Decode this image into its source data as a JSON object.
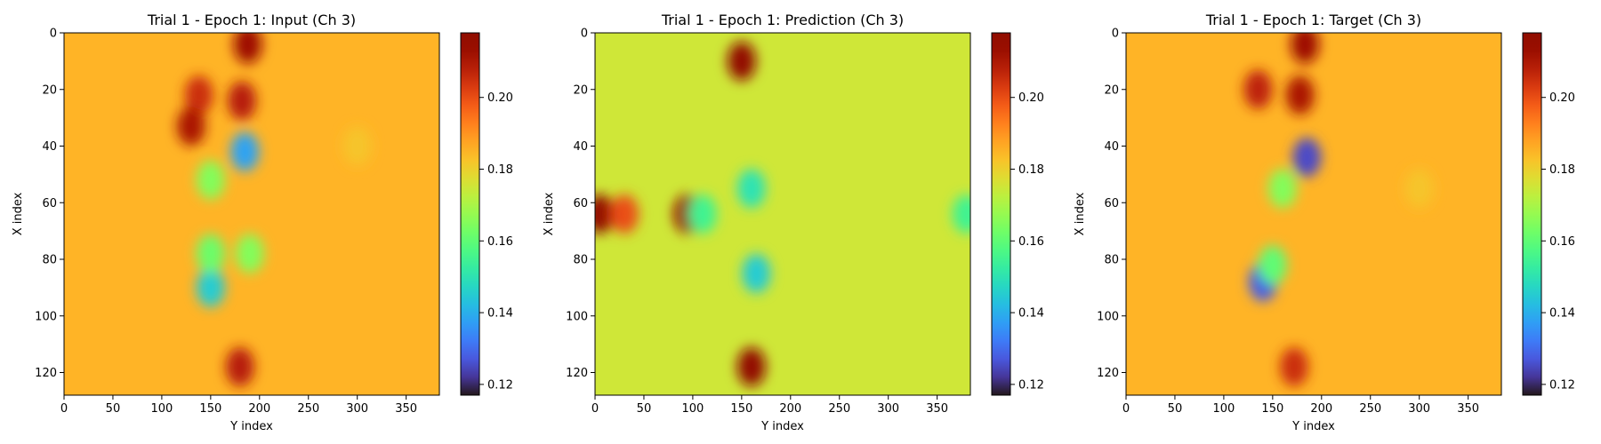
{
  "chart_data": [
    {
      "type": "heatmap",
      "title": "Trial 1 - Epoch 1: Input (Ch 3)",
      "xlabel": "Y index",
      "ylabel": "X index",
      "xlim": [
        0,
        384
      ],
      "ylim": [
        128,
        0
      ],
      "xticks": [
        "0",
        "50",
        "100",
        "150",
        "200",
        "250",
        "300",
        "350"
      ],
      "yticks": [
        "0",
        "20",
        "40",
        "60",
        "80",
        "100",
        "120"
      ],
      "colorbar": {
        "vmin": 0.117,
        "vmax": 0.218,
        "ticks": [
          "0.12",
          "0.14",
          "0.16",
          "0.18",
          "0.20"
        ],
        "colormap": "turbo"
      },
      "background_value": 0.185,
      "features": [
        {
          "x": 188,
          "y": 4,
          "value": 0.212
        },
        {
          "x": 138,
          "y": 22,
          "value": 0.205
        },
        {
          "x": 130,
          "y": 33,
          "value": 0.21
        },
        {
          "x": 182,
          "y": 24,
          "value": 0.208
        },
        {
          "x": 185,
          "y": 42,
          "value": 0.138
        },
        {
          "x": 150,
          "y": 52,
          "value": 0.165
        },
        {
          "x": 150,
          "y": 90,
          "value": 0.145
        },
        {
          "x": 150,
          "y": 78,
          "value": 0.162
        },
        {
          "x": 190,
          "y": 78,
          "value": 0.165
        },
        {
          "x": 180,
          "y": 118,
          "value": 0.208
        },
        {
          "x": 300,
          "y": 40,
          "value": 0.182
        }
      ]
    },
    {
      "type": "heatmap",
      "title": "Trial 1 - Epoch 1: Prediction (Ch 3)",
      "xlabel": "Y index",
      "ylabel": "X index",
      "xlim": [
        0,
        384
      ],
      "ylim": [
        128,
        0
      ],
      "xticks": [
        "0",
        "50",
        "100",
        "150",
        "200",
        "250",
        "300",
        "350"
      ],
      "yticks": [
        "0",
        "20",
        "40",
        "60",
        "80",
        "100",
        "120"
      ],
      "colorbar": {
        "vmin": 0.117,
        "vmax": 0.218,
        "ticks": [
          "0.12",
          "0.14",
          "0.16",
          "0.18",
          "0.20"
        ],
        "colormap": "turbo"
      },
      "background_value": 0.175,
      "features": [
        {
          "x": 5,
          "y": 64,
          "value": 0.215
        },
        {
          "x": 30,
          "y": 64,
          "value": 0.2
        },
        {
          "x": 95,
          "y": 64,
          "value": 0.215
        },
        {
          "x": 110,
          "y": 64,
          "value": 0.155
        },
        {
          "x": 150,
          "y": 10,
          "value": 0.215
        },
        {
          "x": 160,
          "y": 55,
          "value": 0.15
        },
        {
          "x": 165,
          "y": 85,
          "value": 0.145
        },
        {
          "x": 160,
          "y": 118,
          "value": 0.215
        },
        {
          "x": 380,
          "y": 64,
          "value": 0.155
        }
      ]
    },
    {
      "type": "heatmap",
      "title": "Trial 1 - Epoch 1: Target (Ch 3)",
      "xlabel": "Y index",
      "ylabel": "X index",
      "xlim": [
        0,
        384
      ],
      "ylim": [
        128,
        0
      ],
      "xticks": [
        "0",
        "50",
        "100",
        "150",
        "200",
        "250",
        "300",
        "350"
      ],
      "yticks": [
        "0",
        "20",
        "40",
        "60",
        "80",
        "100",
        "120"
      ],
      "colorbar": {
        "vmin": 0.117,
        "vmax": 0.218,
        "ticks": [
          "0.12",
          "0.14",
          "0.16",
          "0.18",
          "0.20"
        ],
        "colormap": "turbo"
      },
      "background_value": 0.185,
      "features": [
        {
          "x": 183,
          "y": 4,
          "value": 0.212
        },
        {
          "x": 135,
          "y": 20,
          "value": 0.207
        },
        {
          "x": 178,
          "y": 22,
          "value": 0.21
        },
        {
          "x": 185,
          "y": 44,
          "value": 0.125
        },
        {
          "x": 160,
          "y": 55,
          "value": 0.165
        },
        {
          "x": 140,
          "y": 88,
          "value": 0.128
        },
        {
          "x": 150,
          "y": 82,
          "value": 0.16
        },
        {
          "x": 172,
          "y": 118,
          "value": 0.205
        },
        {
          "x": 300,
          "y": 55,
          "value": 0.182
        }
      ]
    }
  ]
}
